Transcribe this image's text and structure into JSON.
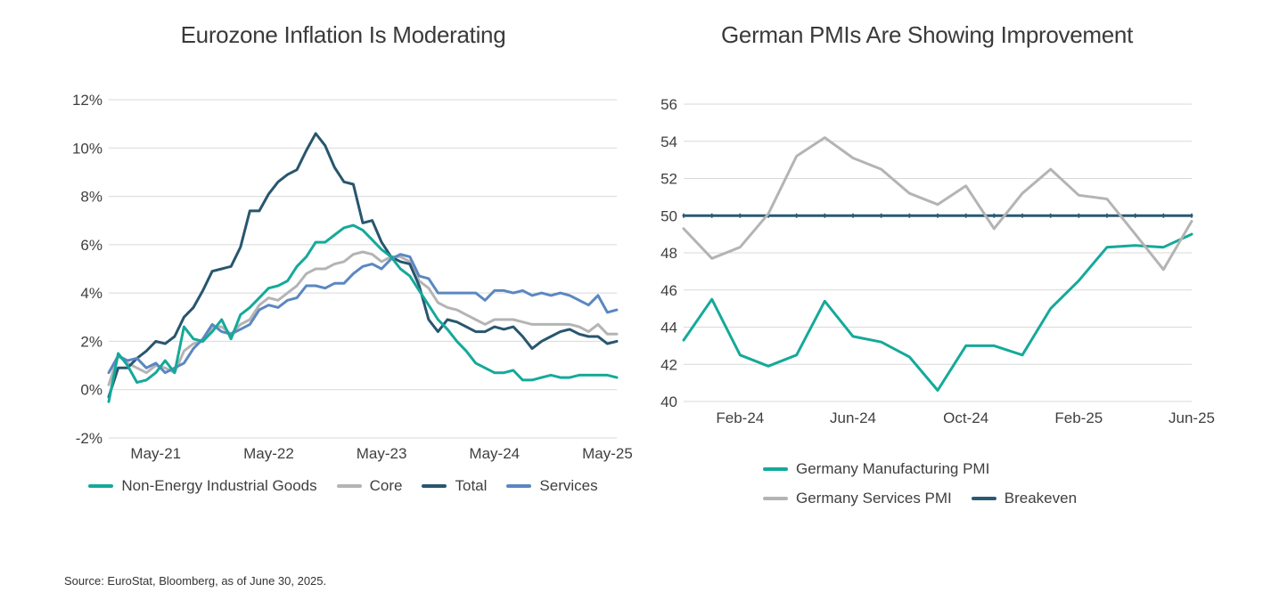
{
  "page": {
    "source_note": "Source: EuroStat, Bloomberg, as of June 30, 2025."
  },
  "colors": {
    "teal": "#15a99a",
    "core_gray": "#b4b4b4",
    "total_navy": "#28566e",
    "services_blue": "#5b87c2",
    "breakeven_navy": "#2a5a72",
    "gridline": "#d9d9d9",
    "text": "#3f3f3f"
  },
  "chart_data": [
    {
      "id": "eurozone-inflation",
      "type": "line",
      "title": "Eurozone Inflation Is Moderating",
      "frequency": "monthly",
      "y_axis": {
        "min": -2,
        "max": 12,
        "step": 2,
        "format": "percent"
      },
      "x_ticks": [
        {
          "label": "May-21",
          "index": 5
        },
        {
          "label": "May-22",
          "index": 17
        },
        {
          "label": "May-23",
          "index": 29
        },
        {
          "label": "May-24",
          "index": 41
        },
        {
          "label": "May-25",
          "index": 53
        }
      ],
      "series": [
        {
          "name": "Non-Energy Industrial Goods",
          "color": "#15a99a",
          "values": [
            -0.5,
            1.5,
            1.0,
            0.3,
            0.4,
            0.7,
            1.2,
            0.7,
            2.6,
            2.1,
            2.0,
            2.4,
            2.9,
            2.1,
            3.1,
            3.4,
            3.8,
            4.2,
            4.3,
            4.5,
            5.1,
            5.5,
            6.1,
            6.1,
            6.4,
            6.7,
            6.8,
            6.6,
            6.2,
            5.8,
            5.5,
            5.0,
            4.7,
            4.1,
            3.5,
            2.9,
            2.5,
            2.0,
            1.6,
            1.1,
            0.9,
            0.7,
            0.7,
            0.8,
            0.4,
            0.4,
            0.5,
            0.6,
            0.5,
            0.5,
            0.6,
            0.6,
            0.6,
            0.6,
            0.5
          ]
        },
        {
          "name": "Core",
          "color": "#b4b4b4",
          "values": [
            0.2,
            1.4,
            1.1,
            0.9,
            0.7,
            1.0,
            0.9,
            0.7,
            1.6,
            1.9,
            2.0,
            2.6,
            2.6,
            2.3,
            2.7,
            2.9,
            3.5,
            3.8,
            3.7,
            4.0,
            4.3,
            4.8,
            5.0,
            5.0,
            5.2,
            5.3,
            5.6,
            5.7,
            5.6,
            5.3,
            5.5,
            5.5,
            5.3,
            4.5,
            4.2,
            3.6,
            3.4,
            3.3,
            3.1,
            2.9,
            2.7,
            2.9,
            2.9,
            2.9,
            2.8,
            2.7,
            2.7,
            2.7,
            2.7,
            2.7,
            2.6,
            2.4,
            2.7,
            2.3,
            2.3
          ]
        },
        {
          "name": "Total",
          "color": "#28566e",
          "values": [
            -0.3,
            0.9,
            0.9,
            1.3,
            1.6,
            2.0,
            1.9,
            2.2,
            3.0,
            3.4,
            4.1,
            4.9,
            5.0,
            5.1,
            5.9,
            7.4,
            7.4,
            8.1,
            8.6,
            8.9,
            9.1,
            9.9,
            10.6,
            10.1,
            9.2,
            8.6,
            8.5,
            6.9,
            7.0,
            6.1,
            5.5,
            5.3,
            5.2,
            4.3,
            2.9,
            2.4,
            2.9,
            2.8,
            2.6,
            2.4,
            2.4,
            2.6,
            2.5,
            2.6,
            2.2,
            1.7,
            2.0,
            2.2,
            2.4,
            2.5,
            2.3,
            2.2,
            2.2,
            1.9,
            2.0
          ]
        },
        {
          "name": "Services",
          "color": "#5b87c2",
          "values": [
            0.7,
            1.4,
            1.2,
            1.3,
            0.9,
            1.1,
            0.7,
            0.9,
            1.1,
            1.7,
            2.1,
            2.7,
            2.4,
            2.3,
            2.5,
            2.7,
            3.3,
            3.5,
            3.4,
            3.7,
            3.8,
            4.3,
            4.3,
            4.2,
            4.4,
            4.4,
            4.8,
            5.1,
            5.2,
            5.0,
            5.4,
            5.6,
            5.5,
            4.7,
            4.6,
            4.0,
            4.0,
            4.0,
            4.0,
            4.0,
            3.7,
            4.1,
            4.1,
            4.0,
            4.1,
            3.9,
            4.0,
            3.9,
            4.0,
            3.9,
            3.7,
            3.5,
            3.9,
            3.2,
            3.3
          ]
        }
      ],
      "legend_rows": [
        [
          "Non-Energy Industrial Goods",
          "Core",
          "Total",
          "Services"
        ]
      ]
    },
    {
      "id": "german-pmi",
      "type": "line",
      "title": "German PMIs Are Showing Improvement",
      "frequency": "monthly",
      "y_axis": {
        "min": 40,
        "max": 56,
        "step": 2,
        "format": "number"
      },
      "x_ticks": [
        {
          "label": "Feb-24",
          "index": 2
        },
        {
          "label": "Jun-24",
          "index": 6
        },
        {
          "label": "Oct-24",
          "index": 10
        },
        {
          "label": "Feb-25",
          "index": 14
        },
        {
          "label": "Jun-25",
          "index": 18
        }
      ],
      "series": [
        {
          "name": "Germany Manufacturing PMI",
          "color": "#15a99a",
          "values": [
            43.3,
            45.5,
            42.5,
            41.9,
            42.5,
            45.4,
            43.5,
            43.2,
            42.4,
            40.6,
            43.0,
            43.0,
            42.5,
            45.0,
            46.5,
            48.3,
            48.4,
            48.3,
            49.0
          ]
        },
        {
          "name": "Germany Services PMI",
          "color": "#b4b4b4",
          "values": [
            49.3,
            47.7,
            48.3,
            50.1,
            53.2,
            54.2,
            53.1,
            52.5,
            51.2,
            50.6,
            51.6,
            49.3,
            51.2,
            52.5,
            51.1,
            50.9,
            49.0,
            47.1,
            49.7
          ]
        },
        {
          "name": "Breakeven",
          "color": "#2a5a72",
          "markers": "tick",
          "values": [
            50,
            50,
            50,
            50,
            50,
            50,
            50,
            50,
            50,
            50,
            50,
            50,
            50,
            50,
            50,
            50,
            50,
            50,
            50
          ]
        }
      ],
      "legend_rows": [
        [
          "Germany Manufacturing PMI"
        ],
        [
          "Germany Services PMI",
          "Breakeven"
        ]
      ]
    }
  ]
}
